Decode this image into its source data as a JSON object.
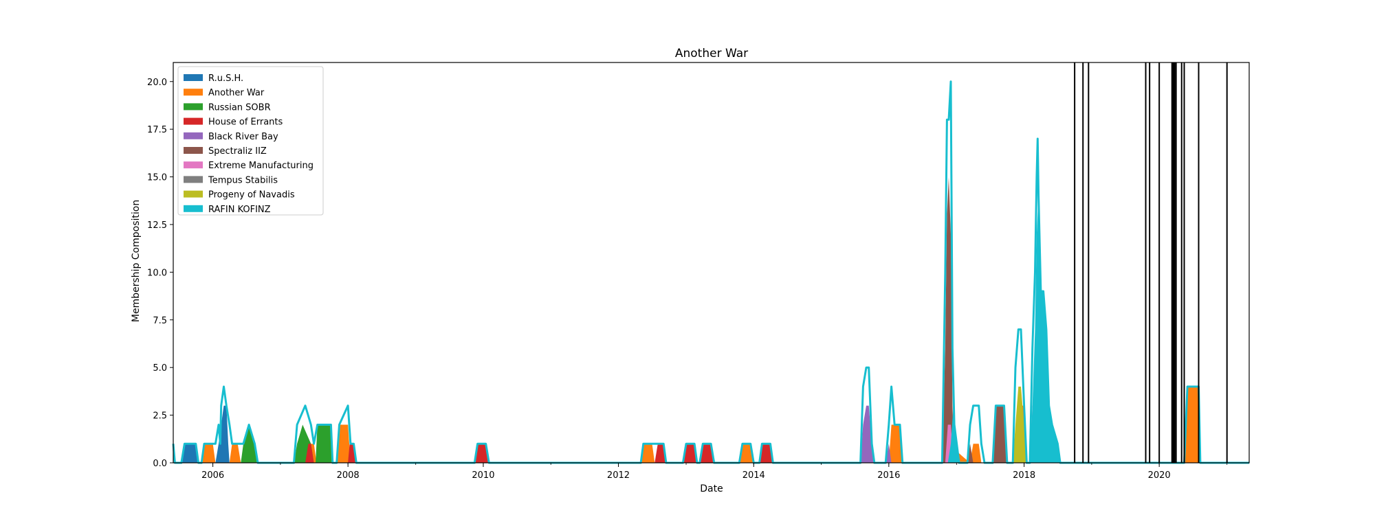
{
  "chart_data": {
    "type": "area",
    "title": "Another War",
    "xlabel": "Date",
    "ylabel": "Membership Composition",
    "xlim": [
      "2005-06-01",
      "2021-05-01"
    ],
    "ylim": [
      0,
      21
    ],
    "x_ticks": [
      "2006",
      "2008",
      "2010",
      "2012",
      "2014",
      "2016",
      "2018",
      "2020"
    ],
    "y_ticks": [
      "0.0",
      "2.5",
      "5.0",
      "7.5",
      "10.0",
      "12.5",
      "15.0",
      "17.5",
      "20.0"
    ],
    "stacked": true,
    "legend_position": "upper-left",
    "grid": false,
    "series": [
      {
        "name": "R.u.S.H.",
        "color": "#1f77b4",
        "points": [
          [
            "2005-07-15",
            0
          ],
          [
            "2005-08-01",
            1
          ],
          [
            "2005-10-01",
            1
          ],
          [
            "2005-10-15",
            0
          ],
          [
            "2006-01-15",
            0
          ],
          [
            "2006-02-01",
            1
          ],
          [
            "2006-02-15",
            2
          ],
          [
            "2006-03-01",
            3
          ],
          [
            "2006-03-15",
            3
          ],
          [
            "2006-03-25",
            1
          ],
          [
            "2006-04-01",
            0
          ]
        ]
      },
      {
        "name": "Another War",
        "color": "#ff7f0e",
        "points": [
          [
            "2005-11-01",
            0
          ],
          [
            "2005-11-15",
            1
          ],
          [
            "2006-01-01",
            1
          ],
          [
            "2006-01-15",
            0
          ],
          [
            "2006-04-01",
            0
          ],
          [
            "2006-04-15",
            1
          ],
          [
            "2006-05-15",
            1
          ],
          [
            "2006-06-01",
            0
          ],
          [
            "2007-05-01",
            0
          ],
          [
            "2007-05-15",
            1
          ],
          [
            "2007-07-01",
            1
          ],
          [
            "2007-07-15",
            0
          ],
          [
            "2007-11-01",
            0
          ],
          [
            "2007-11-15",
            2
          ],
          [
            "2008-01-01",
            2
          ],
          [
            "2008-01-15",
            0
          ],
          [
            "2012-05-01",
            0
          ],
          [
            "2012-05-15",
            1
          ],
          [
            "2012-07-01",
            1
          ],
          [
            "2012-07-15",
            0
          ],
          [
            "2013-10-15",
            0
          ],
          [
            "2013-11-01",
            1
          ],
          [
            "2013-12-15",
            1
          ],
          [
            "2014-01-01",
            0
          ],
          [
            "2016-01-01",
            0
          ],
          [
            "2016-01-15",
            2
          ],
          [
            "2016-03-01",
            2
          ],
          [
            "2016-03-15",
            0
          ],
          [
            "2016-11-01",
            0
          ],
          [
            "2016-11-15",
            1
          ],
          [
            "2017-03-15",
            0
          ],
          [
            "2017-04-01",
            1
          ],
          [
            "2017-05-01",
            1
          ],
          [
            "2017-05-15",
            0
          ],
          [
            "2017-11-15",
            0
          ],
          [
            "2017-12-01",
            3
          ],
          [
            "2018-01-01",
            3
          ],
          [
            "2018-01-15",
            0
          ],
          [
            "2020-05-15",
            0
          ],
          [
            "2020-06-01",
            4
          ],
          [
            "2020-08-01",
            4
          ],
          [
            "2020-08-10",
            0
          ]
        ]
      },
      {
        "name": "Russian SOBR",
        "color": "#2ca02c",
        "points": [
          [
            "2006-06-01",
            0
          ],
          [
            "2006-06-15",
            1
          ],
          [
            "2006-07-15",
            2
          ],
          [
            "2006-08-15",
            1
          ],
          [
            "2006-09-01",
            0
          ],
          [
            "2007-03-15",
            0
          ],
          [
            "2007-04-01",
            1
          ],
          [
            "2007-05-01",
            2
          ],
          [
            "2007-06-15",
            1
          ],
          [
            "2007-07-01",
            0
          ],
          [
            "2007-07-10",
            0
          ],
          [
            "2007-07-20",
            2
          ],
          [
            "2007-10-01",
            2
          ],
          [
            "2007-10-10",
            0
          ]
        ]
      },
      {
        "name": "House of Errants",
        "color": "#d62728",
        "points": [
          [
            "2007-05-15",
            0
          ],
          [
            "2007-06-01",
            1
          ],
          [
            "2007-06-15",
            1
          ],
          [
            "2007-07-01",
            0
          ],
          [
            "2008-01-01",
            0
          ],
          [
            "2008-01-10",
            1
          ],
          [
            "2008-02-01",
            1
          ],
          [
            "2008-02-15",
            0
          ],
          [
            "2009-11-15",
            0
          ],
          [
            "2009-12-01",
            1
          ],
          [
            "2010-01-15",
            1
          ],
          [
            "2010-02-01",
            0
          ],
          [
            "2012-07-15",
            0
          ],
          [
            "2012-08-01",
            1
          ],
          [
            "2012-09-01",
            1
          ],
          [
            "2012-09-15",
            0
          ],
          [
            "2012-12-15",
            0
          ],
          [
            "2013-01-01",
            1
          ],
          [
            "2013-02-15",
            1
          ],
          [
            "2013-03-01",
            0
          ],
          [
            "2013-03-15",
            0
          ],
          [
            "2013-04-01",
            1
          ],
          [
            "2013-05-15",
            1
          ],
          [
            "2013-06-01",
            0
          ],
          [
            "2014-02-01",
            0
          ],
          [
            "2014-02-15",
            1
          ],
          [
            "2014-04-01",
            1
          ],
          [
            "2014-04-15",
            0
          ]
        ]
      },
      {
        "name": "Black River Bay",
        "color": "#9467bd",
        "points": [
          [
            "2015-08-01",
            0
          ],
          [
            "2015-08-15",
            2
          ],
          [
            "2015-09-01",
            3
          ],
          [
            "2015-09-15",
            3
          ],
          [
            "2015-10-01",
            1
          ],
          [
            "2015-10-15",
            0
          ],
          [
            "2015-12-15",
            0
          ],
          [
            "2016-01-01",
            1
          ],
          [
            "2016-01-15",
            0
          ],
          [
            "2016-11-15",
            0
          ],
          [
            "2016-12-01",
            1
          ],
          [
            "2017-01-01",
            1
          ],
          [
            "2017-01-15",
            0
          ]
        ]
      },
      {
        "name": "Spectraliz IIZ",
        "color": "#8c564b",
        "points": [
          [
            "2016-10-15",
            0
          ],
          [
            "2016-11-01",
            6
          ],
          [
            "2016-11-10",
            13
          ],
          [
            "2016-11-20",
            15
          ],
          [
            "2016-12-01",
            12
          ],
          [
            "2016-12-10",
            3
          ],
          [
            "2016-12-20",
            0
          ],
          [
            "2017-03-01",
            0
          ],
          [
            "2017-03-15",
            1
          ],
          [
            "2017-04-01",
            0
          ],
          [
            "2017-07-15",
            0
          ],
          [
            "2017-08-01",
            3
          ],
          [
            "2017-09-15",
            3
          ],
          [
            "2017-10-01",
            0
          ]
        ]
      },
      {
        "name": "Extreme Manufacturing",
        "color": "#e377c2",
        "points": [
          [
            "2016-11-01",
            0
          ],
          [
            "2016-11-15",
            2
          ],
          [
            "2016-12-01",
            2
          ],
          [
            "2016-12-15",
            0
          ],
          [
            "2018-02-01",
            0
          ],
          [
            "2018-02-15",
            3
          ],
          [
            "2018-03-15",
            3
          ],
          [
            "2018-04-01",
            0
          ]
        ]
      },
      {
        "name": "Tempus Stabilis",
        "color": "#7f7f7f",
        "points": []
      },
      {
        "name": "Progeny of Navadis",
        "color": "#bcbd22",
        "points": [
          [
            "2017-11-01",
            0
          ],
          [
            "2017-11-15",
            2
          ],
          [
            "2017-12-01",
            4
          ],
          [
            "2017-12-15",
            4
          ],
          [
            "2018-01-01",
            2
          ],
          [
            "2018-01-15",
            0
          ]
        ]
      },
      {
        "name": "RAFIN KOFINZ",
        "color": "#17becf",
        "points": [
          [
            "2016-11-15",
            0
          ],
          [
            "2016-12-01",
            1
          ],
          [
            "2016-12-15",
            3
          ],
          [
            "2017-01-01",
            1
          ],
          [
            "2017-01-15",
            0
          ],
          [
            "2018-02-01",
            0
          ],
          [
            "2018-02-15",
            3
          ],
          [
            "2018-03-01",
            7
          ],
          [
            "2018-03-10",
            12
          ],
          [
            "2018-03-20",
            14
          ],
          [
            "2018-04-01",
            9
          ],
          [
            "2018-04-15",
            9
          ],
          [
            "2018-05-01",
            7
          ],
          [
            "2018-05-15",
            3
          ],
          [
            "2018-06-01",
            2
          ],
          [
            "2018-07-01",
            1
          ],
          [
            "2018-07-15",
            0
          ]
        ]
      }
    ],
    "total_outline": {
      "color": "#17becf",
      "points": [
        [
          "2005-06-01",
          1
        ],
        [
          "2005-06-10",
          0
        ],
        [
          "2005-07-15",
          0
        ],
        [
          "2005-08-01",
          1
        ],
        [
          "2005-10-01",
          1
        ],
        [
          "2005-10-15",
          0
        ],
        [
          "2005-11-01",
          0
        ],
        [
          "2005-11-15",
          1
        ],
        [
          "2006-01-01",
          1
        ],
        [
          "2006-01-15",
          1
        ],
        [
          "2006-02-01",
          2
        ],
        [
          "2006-02-10",
          1
        ],
        [
          "2006-02-15",
          3
        ],
        [
          "2006-03-01",
          4
        ],
        [
          "2006-03-15",
          3
        ],
        [
          "2006-04-01",
          2
        ],
        [
          "2006-04-15",
          1
        ],
        [
          "2006-05-15",
          1
        ],
        [
          "2006-06-01",
          1
        ],
        [
          "2006-06-15",
          1
        ],
        [
          "2006-07-15",
          2
        ],
        [
          "2006-08-15",
          1
        ],
        [
          "2006-09-01",
          0
        ],
        [
          "2007-03-15",
          0
        ],
        [
          "2007-04-01",
          2
        ],
        [
          "2007-05-15",
          3
        ],
        [
          "2007-06-15",
          2
        ],
        [
          "2007-07-01",
          1
        ],
        [
          "2007-07-20",
          2
        ],
        [
          "2007-10-01",
          2
        ],
        [
          "2007-10-10",
          0
        ],
        [
          "2007-11-01",
          0
        ],
        [
          "2007-11-15",
          2
        ],
        [
          "2008-01-01",
          3
        ],
        [
          "2008-01-15",
          1
        ],
        [
          "2008-02-01",
          1
        ],
        [
          "2008-02-15",
          0
        ],
        [
          "2009-11-15",
          0
        ],
        [
          "2009-12-01",
          1
        ],
        [
          "2010-01-15",
          1
        ],
        [
          "2010-02-01",
          0
        ],
        [
          "2012-05-01",
          0
        ],
        [
          "2012-05-15",
          1
        ],
        [
          "2012-07-01",
          1
        ],
        [
          "2012-07-15",
          1
        ],
        [
          "2012-09-01",
          1
        ],
        [
          "2012-09-15",
          0
        ],
        [
          "2012-12-15",
          0
        ],
        [
          "2013-01-01",
          1
        ],
        [
          "2013-02-15",
          1
        ],
        [
          "2013-03-01",
          0
        ],
        [
          "2013-03-15",
          0
        ],
        [
          "2013-04-01",
          1
        ],
        [
          "2013-05-15",
          1
        ],
        [
          "2013-06-01",
          0
        ],
        [
          "2013-10-15",
          0
        ],
        [
          "2013-11-01",
          1
        ],
        [
          "2013-12-15",
          1
        ],
        [
          "2014-01-01",
          0
        ],
        [
          "2014-02-01",
          0
        ],
        [
          "2014-02-15",
          1
        ],
        [
          "2014-04-01",
          1
        ],
        [
          "2014-04-15",
          0
        ],
        [
          "2015-08-01",
          0
        ],
        [
          "2015-08-15",
          4
        ],
        [
          "2015-09-01",
          5
        ],
        [
          "2015-09-15",
          5
        ],
        [
          "2015-10-01",
          1
        ],
        [
          "2015-10-15",
          0
        ],
        [
          "2015-12-15",
          0
        ],
        [
          "2016-01-01",
          2
        ],
        [
          "2016-01-15",
          4
        ],
        [
          "2016-02-01",
          2
        ],
        [
          "2016-03-01",
          2
        ],
        [
          "2016-03-15",
          0
        ],
        [
          "2016-10-15",
          0
        ],
        [
          "2016-11-01",
          10
        ],
        [
          "2016-11-10",
          18
        ],
        [
          "2016-11-20",
          18
        ],
        [
          "2016-12-01",
          20
        ],
        [
          "2016-12-10",
          6
        ],
        [
          "2016-12-20",
          2
        ],
        [
          "2017-01-15",
          0
        ],
        [
          "2017-03-01",
          0
        ],
        [
          "2017-03-15",
          2
        ],
        [
          "2017-04-01",
          3
        ],
        [
          "2017-05-01",
          3
        ],
        [
          "2017-05-15",
          1
        ],
        [
          "2017-06-01",
          0
        ],
        [
          "2017-07-15",
          0
        ],
        [
          "2017-08-01",
          3
        ],
        [
          "2017-09-15",
          3
        ],
        [
          "2017-10-01",
          0
        ],
        [
          "2017-11-01",
          0
        ],
        [
          "2017-11-15",
          5
        ],
        [
          "2017-12-01",
          7
        ],
        [
          "2017-12-15",
          7
        ],
        [
          "2018-01-01",
          3
        ],
        [
          "2018-01-15",
          0
        ],
        [
          "2018-02-01",
          0
        ],
        [
          "2018-02-15",
          6
        ],
        [
          "2018-03-01",
          10
        ],
        [
          "2018-03-10",
          15
        ],
        [
          "2018-03-15",
          17
        ],
        [
          "2018-03-20",
          14
        ],
        [
          "2018-04-01",
          9
        ],
        [
          "2018-04-15",
          9
        ],
        [
          "2018-05-01",
          7
        ],
        [
          "2018-05-15",
          3
        ],
        [
          "2018-06-01",
          2
        ],
        [
          "2018-07-01",
          1
        ],
        [
          "2018-07-15",
          0
        ],
        [
          "2020-05-15",
          0
        ],
        [
          "2020-06-01",
          4
        ],
        [
          "2020-08-01",
          4
        ],
        [
          "2020-08-10",
          0
        ],
        [
          "2021-05-01",
          0
        ]
      ]
    },
    "vertical_lines": [
      "2018-10-01",
      "2018-11-15",
      "2018-12-15",
      "2019-10-20",
      "2019-11-10",
      "2020-01-01",
      "2020-03-10",
      "2020-03-15",
      "2020-03-20",
      "2020-03-25",
      "2020-04-01",
      "2020-05-01",
      "2020-05-15",
      "2020-08-01",
      "2021-01-01"
    ]
  }
}
